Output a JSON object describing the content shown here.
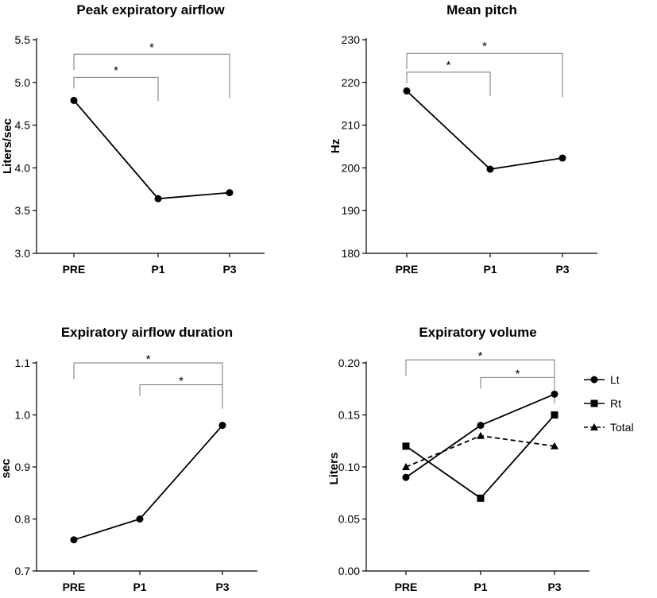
{
  "chart_data": [
    {
      "type": "line",
      "title": "Peak expiratory airflow",
      "xlabel": "",
      "ylabel": "Liters/sec",
      "categories": [
        "PRE",
        "P1",
        "P3"
      ],
      "ylim": [
        3.0,
        5.5
      ],
      "yticks": [
        "3.0",
        "3.5",
        "4.0",
        "4.5",
        "5.0",
        "5.5"
      ],
      "series": [
        {
          "values": [
            4.79,
            3.64,
            3.71
          ],
          "marker": "circle",
          "dash": false
        }
      ],
      "significance": [
        {
          "from": "PRE",
          "to": "P3",
          "label": "*",
          "level": 5.33
        },
        {
          "from": "PRE",
          "to": "P1",
          "label": "*",
          "level": 5.06
        }
      ]
    },
    {
      "type": "line",
      "title": "Mean pitch",
      "xlabel": "",
      "ylabel": "Hz",
      "categories": [
        "PRE",
        "P1",
        "P3"
      ],
      "ylim": [
        180,
        230
      ],
      "yticks": [
        "180",
        "190",
        "200",
        "210",
        "220",
        "230"
      ],
      "series": [
        {
          "values": [
            218.0,
            199.7,
            202.3
          ],
          "marker": "circle",
          "dash": false
        }
      ],
      "significance": [
        {
          "from": "PRE",
          "to": "P3",
          "label": "*",
          "level": 226.8
        },
        {
          "from": "PRE",
          "to": "P1",
          "label": "*",
          "level": 222.4
        }
      ]
    },
    {
      "type": "line",
      "title": "Expiratory airflow duration",
      "xlabel": "",
      "ylabel": "sec",
      "categories": [
        "PRE",
        "P1",
        "P3"
      ],
      "ylim": [
        0.7,
        1.1
      ],
      "yticks": [
        "0.7",
        "0.8",
        "0.9",
        "1.0",
        "1.1"
      ],
      "series": [
        {
          "values": [
            0.76,
            0.8,
            0.98
          ],
          "marker": "circle",
          "dash": false
        }
      ],
      "significance": [
        {
          "from": "PRE",
          "to": "P3",
          "label": "*",
          "level": 1.1
        },
        {
          "from": "P1",
          "to": "P3",
          "label": "*",
          "level": 1.058
        }
      ]
    },
    {
      "type": "line",
      "title": "Expiratory volume",
      "xlabel": "",
      "ylabel": "Liters",
      "categories": [
        "PRE",
        "P1",
        "P3"
      ],
      "ylim": [
        0.0,
        0.2
      ],
      "yticks": [
        "0.00",
        "0.05",
        "0.10",
        "0.15",
        "0.20"
      ],
      "legend_position": "right",
      "series": [
        {
          "name": "Lt",
          "values": [
            0.09,
            0.14,
            0.17
          ],
          "marker": "circle",
          "dash": false
        },
        {
          "name": "Rt",
          "values": [
            0.12,
            0.07,
            0.15
          ],
          "marker": "square",
          "dash": false
        },
        {
          "name": "Total",
          "values": [
            0.1,
            0.13,
            0.12
          ],
          "marker": "triangle",
          "dash": true
        }
      ],
      "significance": [
        {
          "from": "PRE",
          "to": "P3",
          "label": "*",
          "level": 0.203
        },
        {
          "from": "P1",
          "to": "P3",
          "label": "*",
          "level": 0.186
        }
      ]
    }
  ]
}
